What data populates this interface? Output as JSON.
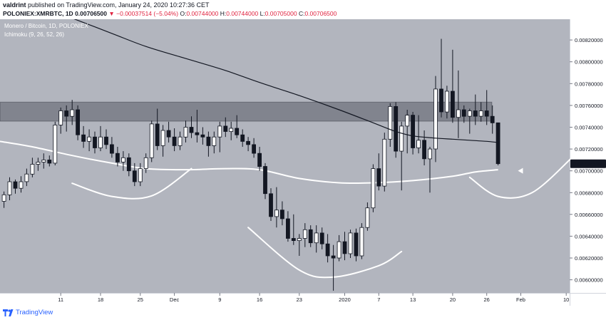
{
  "header": {
    "author": "valdrint",
    "published_text": "published on TradingView.com, January 24, 2020 10:27:36 CET",
    "symbol": "POLONIEX:XMRBTC, 1D",
    "last": "0.00706500",
    "change": "▼ −0.00037514 (−5.04%)",
    "o_label": "O:",
    "o_value": "0.00744000",
    "h_label": "H:",
    "h_value": "0.00744000",
    "l_label": "L:",
    "l_value": "0.00705000",
    "c_label": "C:",
    "c_value": "0.00706500"
  },
  "legend": {
    "title": "Monero / Bitcoin, 1D, POLONIEX",
    "indicator": "Ichimoku (9, 26, 52, 26)"
  },
  "footer": {
    "brand": "TradingView"
  },
  "colors": {
    "background": "#b2b5be",
    "up_candle": "#ffffff",
    "down_candle": "#131722",
    "zone": "#787b86",
    "curve": "#ffffff",
    "price_badge": "#131722"
  },
  "chart_data": {
    "type": "candlestick",
    "title": "Monero / Bitcoin, 1D, POLONIEX",
    "y_ticks": [
      "0.00820000",
      "0.00800000",
      "0.00780000",
      "0.00760000",
      "0.00740000",
      "0.00720000",
      "0.00700000",
      "0.00680000",
      "0.00660000",
      "0.00640000",
      "0.00620000",
      "0.00600000"
    ],
    "y_tick_values": [
      0.0082,
      0.008,
      0.0078,
      0.0076,
      0.0074,
      0.0072,
      0.007,
      0.0068,
      0.0066,
      0.0064,
      0.0062,
      0.006
    ],
    "ylim": [
      0.00588,
      0.00839
    ],
    "x_ticks": [
      {
        "label": "11",
        "day": 11
      },
      {
        "label": "18",
        "day": 18
      },
      {
        "label": "25",
        "day": 25
      },
      {
        "label": "Dec",
        "day": 31
      },
      {
        "label": "9",
        "day": 39
      },
      {
        "label": "16",
        "day": 46
      },
      {
        "label": "23",
        "day": 53
      },
      {
        "label": "2020",
        "day": 61
      },
      {
        "label": "7",
        "day": 67
      },
      {
        "label": "13",
        "day": 73
      },
      {
        "label": "20",
        "day": 80
      },
      {
        "label": "26",
        "day": 86
      },
      {
        "label": "Feb",
        "day": 92
      },
      {
        "label": "10",
        "day": 100
      }
    ],
    "xlim": [
      0.3,
      100.6
    ],
    "current_price_label": "0.00706500",
    "current_price": 0.007065,
    "resistance_zone": [
      0.007455,
      0.00763
    ],
    "candles": [
      {
        "d": 1,
        "o": 0.00672,
        "h": 0.00681,
        "l": 0.00666,
        "c": 0.00678
      },
      {
        "d": 2,
        "o": 0.00678,
        "h": 0.00694,
        "l": 0.00673,
        "c": 0.0069
      },
      {
        "d": 3,
        "o": 0.0069,
        "h": 0.00692,
        "l": 0.00679,
        "c": 0.00684
      },
      {
        "d": 4,
        "o": 0.00684,
        "h": 0.00695,
        "l": 0.0068,
        "c": 0.0069
      },
      {
        "d": 5,
        "o": 0.0069,
        "h": 0.00702,
        "l": 0.00686,
        "c": 0.00697
      },
      {
        "d": 6,
        "o": 0.00697,
        "h": 0.00712,
        "l": 0.00694,
        "c": 0.00706
      },
      {
        "d": 7,
        "o": 0.00706,
        "h": 0.00712,
        "l": 0.007,
        "c": 0.00708
      },
      {
        "d": 8,
        "o": 0.00708,
        "h": 0.00716,
        "l": 0.00702,
        "c": 0.0071
      },
      {
        "d": 9,
        "o": 0.0071,
        "h": 0.00714,
        "l": 0.00704,
        "c": 0.00707
      },
      {
        "d": 10,
        "o": 0.00707,
        "h": 0.00745,
        "l": 0.00705,
        "c": 0.00742
      },
      {
        "d": 11,
        "o": 0.00742,
        "h": 0.00758,
        "l": 0.00734,
        "c": 0.00755
      },
      {
        "d": 12,
        "o": 0.00755,
        "h": 0.0076,
        "l": 0.00736,
        "c": 0.0075
      },
      {
        "d": 13,
        "o": 0.0075,
        "h": 0.00765,
        "l": 0.00742,
        "c": 0.00756
      },
      {
        "d": 14,
        "o": 0.00756,
        "h": 0.0076,
        "l": 0.00728,
        "c": 0.00733
      },
      {
        "d": 15,
        "o": 0.00733,
        "h": 0.00741,
        "l": 0.00721,
        "c": 0.00727
      },
      {
        "d": 16,
        "o": 0.00727,
        "h": 0.00738,
        "l": 0.00718,
        "c": 0.00731
      },
      {
        "d": 17,
        "o": 0.00731,
        "h": 0.00736,
        "l": 0.00716,
        "c": 0.00721
      },
      {
        "d": 18,
        "o": 0.00721,
        "h": 0.00741,
        "l": 0.00718,
        "c": 0.00731
      },
      {
        "d": 19,
        "o": 0.00731,
        "h": 0.00738,
        "l": 0.0072,
        "c": 0.00724
      },
      {
        "d": 20,
        "o": 0.00724,
        "h": 0.00731,
        "l": 0.00712,
        "c": 0.00716
      },
      {
        "d": 21,
        "o": 0.00716,
        "h": 0.00722,
        "l": 0.00704,
        "c": 0.00708
      },
      {
        "d": 22,
        "o": 0.00708,
        "h": 0.00718,
        "l": 0.007,
        "c": 0.00712
      },
      {
        "d": 23,
        "o": 0.00712,
        "h": 0.00716,
        "l": 0.00695,
        "c": 0.007
      },
      {
        "d": 24,
        "o": 0.007,
        "h": 0.00707,
        "l": 0.00686,
        "c": 0.0069
      },
      {
        "d": 25,
        "o": 0.0069,
        "h": 0.00707,
        "l": 0.00686,
        "c": 0.00702
      },
      {
        "d": 26,
        "o": 0.00702,
        "h": 0.00716,
        "l": 0.00698,
        "c": 0.00712
      },
      {
        "d": 27,
        "o": 0.00712,
        "h": 0.00746,
        "l": 0.00708,
        "c": 0.00743
      },
      {
        "d": 28,
        "o": 0.00743,
        "h": 0.00757,
        "l": 0.00719,
        "c": 0.00723
      },
      {
        "d": 29,
        "o": 0.00723,
        "h": 0.00742,
        "l": 0.00713,
        "c": 0.00737
      },
      {
        "d": 30,
        "o": 0.00737,
        "h": 0.00745,
        "l": 0.00726,
        "c": 0.00731
      },
      {
        "d": 31,
        "o": 0.00731,
        "h": 0.00739,
        "l": 0.00718,
        "c": 0.00723
      },
      {
        "d": 32,
        "o": 0.00723,
        "h": 0.00736,
        "l": 0.00719,
        "c": 0.00731
      },
      {
        "d": 33,
        "o": 0.00731,
        "h": 0.00746,
        "l": 0.00726,
        "c": 0.0074
      },
      {
        "d": 34,
        "o": 0.0074,
        "h": 0.0075,
        "l": 0.0073,
        "c": 0.00735
      },
      {
        "d": 35,
        "o": 0.00735,
        "h": 0.00756,
        "l": 0.00726,
        "c": 0.00733
      },
      {
        "d": 36,
        "o": 0.00733,
        "h": 0.0074,
        "l": 0.00724,
        "c": 0.00731
      },
      {
        "d": 37,
        "o": 0.00731,
        "h": 0.00736,
        "l": 0.00713,
        "c": 0.00723
      },
      {
        "d": 38,
        "o": 0.00723,
        "h": 0.00736,
        "l": 0.00716,
        "c": 0.00731
      },
      {
        "d": 39,
        "o": 0.00731,
        "h": 0.00745,
        "l": 0.00717,
        "c": 0.00741
      },
      {
        "d": 40,
        "o": 0.00741,
        "h": 0.00749,
        "l": 0.00731,
        "c": 0.00736
      },
      {
        "d": 41,
        "o": 0.00736,
        "h": 0.00745,
        "l": 0.00728,
        "c": 0.00739
      },
      {
        "d": 42,
        "o": 0.00739,
        "h": 0.00751,
        "l": 0.0073,
        "c": 0.00733
      },
      {
        "d": 43,
        "o": 0.00733,
        "h": 0.00738,
        "l": 0.00722,
        "c": 0.00727
      },
      {
        "d": 44,
        "o": 0.00727,
        "h": 0.00731,
        "l": 0.00718,
        "c": 0.00724
      },
      {
        "d": 45,
        "o": 0.00724,
        "h": 0.0073,
        "l": 0.00712,
        "c": 0.00716
      },
      {
        "d": 46,
        "o": 0.00716,
        "h": 0.00722,
        "l": 0.007,
        "c": 0.00704
      },
      {
        "d": 47,
        "o": 0.00704,
        "h": 0.00707,
        "l": 0.00674,
        "c": 0.00679
      },
      {
        "d": 48,
        "o": 0.00679,
        "h": 0.00684,
        "l": 0.00654,
        "c": 0.00658
      },
      {
        "d": 49,
        "o": 0.00658,
        "h": 0.00685,
        "l": 0.00648,
        "c": 0.00664
      },
      {
        "d": 50,
        "o": 0.00664,
        "h": 0.00672,
        "l": 0.0065,
        "c": 0.00656
      },
      {
        "d": 51,
        "o": 0.00656,
        "h": 0.00663,
        "l": 0.00635,
        "c": 0.00638
      },
      {
        "d": 52,
        "o": 0.00638,
        "h": 0.0066,
        "l": 0.00632,
        "c": 0.00636
      },
      {
        "d": 53,
        "o": 0.00636,
        "h": 0.00642,
        "l": 0.00622,
        "c": 0.00638
      },
      {
        "d": 54,
        "o": 0.00638,
        "h": 0.00652,
        "l": 0.0063,
        "c": 0.00646
      },
      {
        "d": 55,
        "o": 0.00646,
        "h": 0.0065,
        "l": 0.0063,
        "c": 0.00634
      },
      {
        "d": 56,
        "o": 0.00634,
        "h": 0.0065,
        "l": 0.00625,
        "c": 0.00643
      },
      {
        "d": 57,
        "o": 0.00643,
        "h": 0.00648,
        "l": 0.00628,
        "c": 0.00633
      },
      {
        "d": 58,
        "o": 0.00633,
        "h": 0.00642,
        "l": 0.00616,
        "c": 0.00622
      },
      {
        "d": 59,
        "o": 0.00622,
        "h": 0.00632,
        "l": 0.0059,
        "c": 0.0062
      },
      {
        "d": 60,
        "o": 0.0062,
        "h": 0.00641,
        "l": 0.00617,
        "c": 0.00635
      },
      {
        "d": 61,
        "o": 0.00635,
        "h": 0.00644,
        "l": 0.00618,
        "c": 0.00624
      },
      {
        "d": 62,
        "o": 0.00624,
        "h": 0.00646,
        "l": 0.0062,
        "c": 0.00643
      },
      {
        "d": 63,
        "o": 0.00643,
        "h": 0.00647,
        "l": 0.00617,
        "c": 0.00622
      },
      {
        "d": 64,
        "o": 0.00622,
        "h": 0.00652,
        "l": 0.00619,
        "c": 0.00648
      },
      {
        "d": 65,
        "o": 0.00648,
        "h": 0.00671,
        "l": 0.00645,
        "c": 0.00666
      },
      {
        "d": 66,
        "o": 0.00666,
        "h": 0.00706,
        "l": 0.00662,
        "c": 0.00702
      },
      {
        "d": 67,
        "o": 0.00702,
        "h": 0.00716,
        "l": 0.00682,
        "c": 0.00686
      },
      {
        "d": 68,
        "o": 0.00686,
        "h": 0.00735,
        "l": 0.00681,
        "c": 0.00729
      },
      {
        "d": 69,
        "o": 0.00729,
        "h": 0.00762,
        "l": 0.00722,
        "c": 0.00759
      },
      {
        "d": 70,
        "o": 0.00759,
        "h": 0.00763,
        "l": 0.00712,
        "c": 0.00718
      },
      {
        "d": 71,
        "o": 0.00718,
        "h": 0.00745,
        "l": 0.00682,
        "c": 0.00741
      },
      {
        "d": 72,
        "o": 0.00741,
        "h": 0.00756,
        "l": 0.00716,
        "c": 0.00751
      },
      {
        "d": 73,
        "o": 0.00751,
        "h": 0.00754,
        "l": 0.00715,
        "c": 0.00721
      },
      {
        "d": 74,
        "o": 0.00721,
        "h": 0.00751,
        "l": 0.00716,
        "c": 0.00728
      },
      {
        "d": 75,
        "o": 0.00728,
        "h": 0.00737,
        "l": 0.00705,
        "c": 0.00711
      },
      {
        "d": 76,
        "o": 0.00711,
        "h": 0.00722,
        "l": 0.0068,
        "c": 0.0072
      },
      {
        "d": 77,
        "o": 0.0072,
        "h": 0.00787,
        "l": 0.00708,
        "c": 0.00775
      },
      {
        "d": 78,
        "o": 0.00775,
        "h": 0.00821,
        "l": 0.00749,
        "c": 0.00754
      },
      {
        "d": 79,
        "o": 0.00754,
        "h": 0.00778,
        "l": 0.00748,
        "c": 0.00773
      },
      {
        "d": 80,
        "o": 0.00773,
        "h": 0.00811,
        "l": 0.00744,
        "c": 0.00749
      },
      {
        "d": 81,
        "o": 0.00749,
        "h": 0.00792,
        "l": 0.0073,
        "c": 0.00756
      },
      {
        "d": 82,
        "o": 0.00756,
        "h": 0.0076,
        "l": 0.00744,
        "c": 0.0075
      },
      {
        "d": 83,
        "o": 0.0075,
        "h": 0.00757,
        "l": 0.00734,
        "c": 0.00755
      },
      {
        "d": 84,
        "o": 0.00755,
        "h": 0.0077,
        "l": 0.00742,
        "c": 0.0075
      },
      {
        "d": 85,
        "o": 0.0075,
        "h": 0.00763,
        "l": 0.00745,
        "c": 0.00755
      },
      {
        "d": 86,
        "o": 0.00755,
        "h": 0.00774,
        "l": 0.00742,
        "c": 0.0075
      },
      {
        "d": 87,
        "o": 0.0075,
        "h": 0.0076,
        "l": 0.00734,
        "c": 0.00744
      },
      {
        "d": 88,
        "o": 0.00744,
        "h": 0.00744,
        "l": 0.00705,
        "c": 0.007065
      }
    ],
    "long_ma": [
      {
        "d": 13,
        "v": 0.0084
      },
      {
        "d": 20,
        "v": 0.00826
      },
      {
        "d": 26,
        "v": 0.00814
      },
      {
        "d": 33,
        "v": 0.00803
      },
      {
        "d": 40,
        "v": 0.00792
      },
      {
        "d": 46,
        "v": 0.00781
      },
      {
        "d": 53,
        "v": 0.00769
      },
      {
        "d": 60,
        "v": 0.00756
      },
      {
        "d": 66,
        "v": 0.00744
      },
      {
        "d": 70,
        "v": 0.00736
      },
      {
        "d": 73,
        "v": 0.00732
      },
      {
        "d": 77,
        "v": 0.0073
      },
      {
        "d": 80,
        "v": 0.00729
      },
      {
        "d": 83,
        "v": 0.00728
      },
      {
        "d": 86,
        "v": 0.00727
      },
      {
        "d": 88,
        "v": 0.00726
      }
    ],
    "cloud_line": [
      {
        "d": 0.3,
        "v": 0.00727
      },
      {
        "d": 6,
        "v": 0.00722
      },
      {
        "d": 13,
        "v": 0.00714
      },
      {
        "d": 20,
        "v": 0.00707
      },
      {
        "d": 26,
        "v": 0.00702
      },
      {
        "d": 33,
        "v": 0.00701
      },
      {
        "d": 40,
        "v": 0.00702
      },
      {
        "d": 46,
        "v": 0.00701
      },
      {
        "d": 53,
        "v": 0.00693
      },
      {
        "d": 60,
        "v": 0.00689
      },
      {
        "d": 66,
        "v": 0.00689
      },
      {
        "d": 73,
        "v": 0.00691
      },
      {
        "d": 80,
        "v": 0.00695
      },
      {
        "d": 84,
        "v": 0.00699
      },
      {
        "d": 88,
        "v": 0.00701
      }
    ],
    "drawn_arcs": [
      {
        "points": [
          {
            "d": 13,
            "v": 0.006885
          },
          {
            "d": 20,
            "v": 0.006765
          },
          {
            "d": 27,
            "v": 0.00677
          },
          {
            "d": 34,
            "v": 0.00702
          }
        ]
      },
      {
        "points": [
          {
            "d": 44,
            "v": 0.00648
          },
          {
            "d": 53,
            "v": 0.00609
          },
          {
            "d": 59,
            "v": 0.006025
          },
          {
            "d": 67,
            "v": 0.00613
          },
          {
            "d": 71,
            "v": 0.00626
          }
        ]
      },
      {
        "points": [
          {
            "d": 83,
            "v": 0.00694
          },
          {
            "d": 88,
            "v": 0.006765
          },
          {
            "d": 94,
            "v": 0.0068
          },
          {
            "d": 101,
            "v": 0.00712
          }
        ]
      }
    ],
    "arrow_marker": {
      "d": 92,
      "v": 0.007
    }
  }
}
